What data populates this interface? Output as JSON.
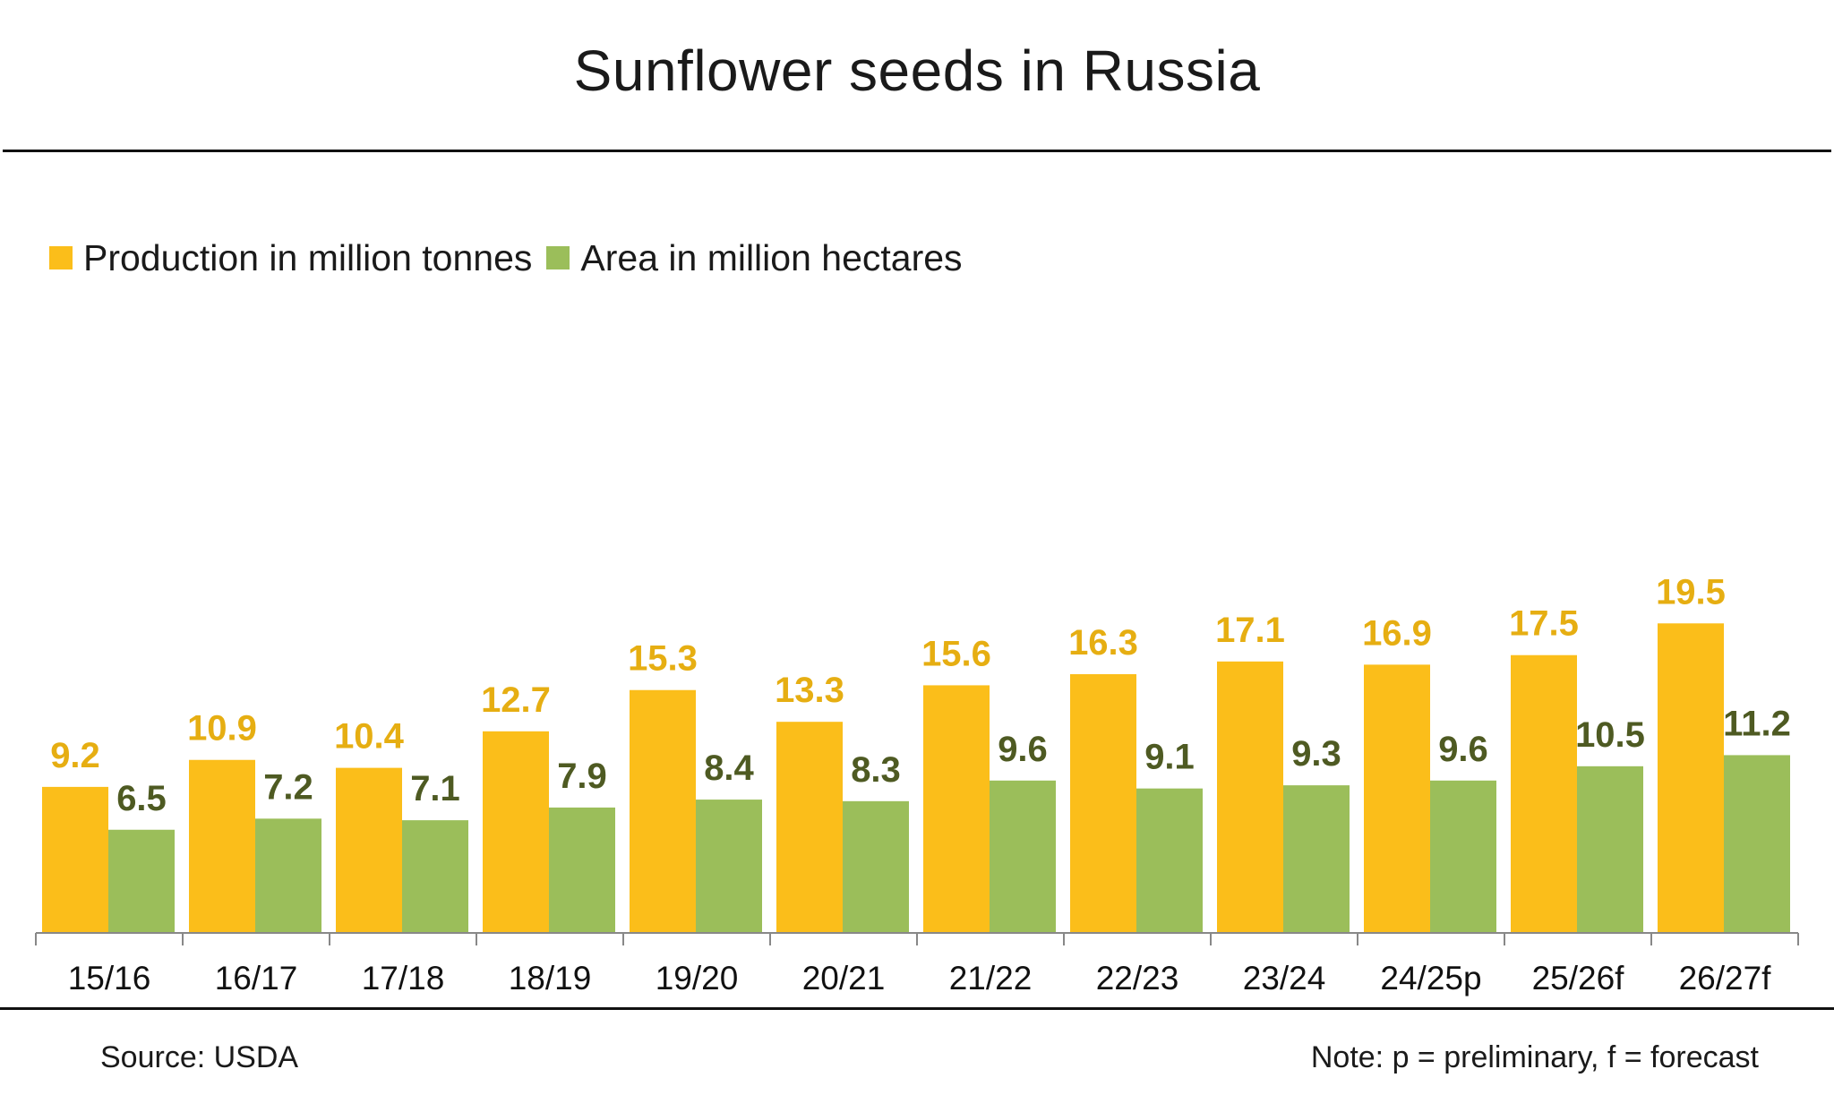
{
  "title": "Sunflower seeds in Russia",
  "source": "Source: USDA",
  "note": "Note: p = preliminary, f = forecast",
  "colors": {
    "production": "#FBBE1A",
    "area": "#9BBE5A",
    "production_label": "#E6AE12",
    "area_label": "#4E5A22",
    "axis": "#888888"
  },
  "chart_data": {
    "type": "bar",
    "categories": [
      "15/16",
      "16/17",
      "17/18",
      "18/19",
      "19/20",
      "20/21",
      "21/22",
      "22/23",
      "23/24",
      "24/25p",
      "25/26f",
      "26/27f"
    ],
    "series": [
      {
        "name": "Production in million tonnes",
        "values": [
          9.2,
          10.9,
          10.4,
          12.7,
          15.3,
          13.3,
          15.6,
          16.3,
          17.1,
          16.9,
          17.5,
          19.5
        ]
      },
      {
        "name": "Area in million hectares",
        "values": [
          6.5,
          7.2,
          7.1,
          7.9,
          8.4,
          8.3,
          9.6,
          9.1,
          9.3,
          9.6,
          10.5,
          11.2
        ]
      }
    ],
    "ylim": [
      0,
      19.5
    ],
    "grid": false,
    "legend": "top-left"
  }
}
